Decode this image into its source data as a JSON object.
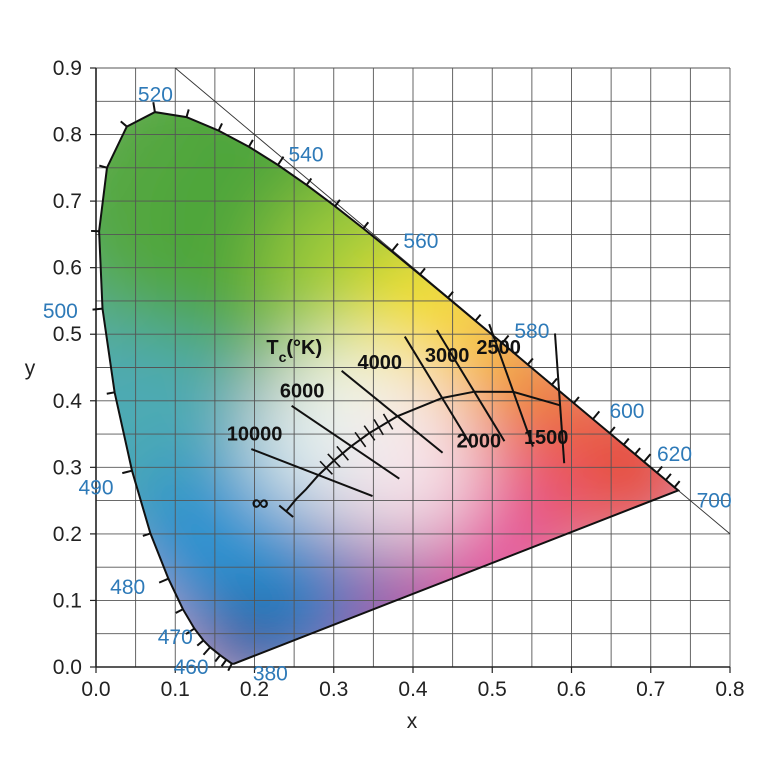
{
  "chart_data": {
    "type": "scatter",
    "xlabel": "x",
    "ylabel": "y",
    "xlim": [
      0.0,
      0.8
    ],
    "ylim": [
      0.0,
      0.9
    ],
    "x_ticks": [
      "0.0",
      "0.1",
      "0.2",
      "0.3",
      "0.4",
      "0.5",
      "0.6",
      "0.7",
      "0.8"
    ],
    "y_ticks": [
      "0.0",
      "0.1",
      "0.2",
      "0.3",
      "0.4",
      "0.5",
      "0.6",
      "0.7",
      "0.8",
      "0.9"
    ],
    "grid": true,
    "spectral_locus": {
      "color": "#2e7ab8",
      "points": [
        {
          "wl": 380,
          "x": 0.1741,
          "y": 0.005
        },
        {
          "wl": 420,
          "x": 0.1714,
          "y": 0.0051
        },
        {
          "wl": 440,
          "x": 0.1644,
          "y": 0.0109
        },
        {
          "wl": 450,
          "x": 0.1566,
          "y": 0.0177
        },
        {
          "wl": 460,
          "x": 0.144,
          "y": 0.0297,
          "label": "460"
        },
        {
          "wl": 465,
          "x": 0.1355,
          "y": 0.0399
        },
        {
          "wl": 470,
          "x": 0.1241,
          "y": 0.0578,
          "label": "470"
        },
        {
          "wl": 475,
          "x": 0.1096,
          "y": 0.0868
        },
        {
          "wl": 480,
          "x": 0.0913,
          "y": 0.1327,
          "label": "480"
        },
        {
          "wl": 485,
          "x": 0.0687,
          "y": 0.2007
        },
        {
          "wl": 490,
          "x": 0.0454,
          "y": 0.295,
          "label": "490"
        },
        {
          "wl": 495,
          "x": 0.0235,
          "y": 0.4127
        },
        {
          "wl": 500,
          "x": 0.0082,
          "y": 0.5384,
          "label": "500"
        },
        {
          "wl": 505,
          "x": 0.0039,
          "y": 0.6548
        },
        {
          "wl": 510,
          "x": 0.0139,
          "y": 0.7502
        },
        {
          "wl": 515,
          "x": 0.0389,
          "y": 0.812
        },
        {
          "wl": 520,
          "x": 0.0743,
          "y": 0.8338,
          "label": "520"
        },
        {
          "wl": 525,
          "x": 0.1142,
          "y": 0.8262
        },
        {
          "wl": 530,
          "x": 0.1547,
          "y": 0.8059
        },
        {
          "wl": 535,
          "x": 0.1929,
          "y": 0.7816
        },
        {
          "wl": 540,
          "x": 0.2296,
          "y": 0.7543,
          "label": "540"
        },
        {
          "wl": 545,
          "x": 0.2658,
          "y": 0.7243
        },
        {
          "wl": 550,
          "x": 0.3016,
          "y": 0.6923
        },
        {
          "wl": 555,
          "x": 0.3373,
          "y": 0.6589
        },
        {
          "wl": 560,
          "x": 0.3731,
          "y": 0.6245,
          "label": "560"
        },
        {
          "wl": 565,
          "x": 0.4087,
          "y": 0.5896
        },
        {
          "wl": 570,
          "x": 0.4441,
          "y": 0.5547
        },
        {
          "wl": 575,
          "x": 0.4788,
          "y": 0.5202
        },
        {
          "wl": 580,
          "x": 0.5125,
          "y": 0.4866,
          "label": "580"
        },
        {
          "wl": 585,
          "x": 0.5448,
          "y": 0.4544
        },
        {
          "wl": 590,
          "x": 0.5752,
          "y": 0.4242
        },
        {
          "wl": 595,
          "x": 0.6029,
          "y": 0.3965
        },
        {
          "wl": 600,
          "x": 0.627,
          "y": 0.3725,
          "label": "600"
        },
        {
          "wl": 605,
          "x": 0.6482,
          "y": 0.3514
        },
        {
          "wl": 610,
          "x": 0.6658,
          "y": 0.334
        },
        {
          "wl": 615,
          "x": 0.6801,
          "y": 0.3197
        },
        {
          "wl": 620,
          "x": 0.6915,
          "y": 0.3083,
          "label": "620"
        },
        {
          "wl": 630,
          "x": 0.7079,
          "y": 0.292
        },
        {
          "wl": 640,
          "x": 0.719,
          "y": 0.2809
        },
        {
          "wl": 660,
          "x": 0.73,
          "y": 0.27
        },
        {
          "wl": 700,
          "x": 0.7347,
          "y": 0.2653,
          "label": "700"
        }
      ],
      "purple_line": {
        "from": 700,
        "to": 380,
        "label_end": "380"
      }
    },
    "reference_line": {
      "from": [
        0.1,
        0.9
      ],
      "to": [
        0.8,
        0.2
      ]
    },
    "planckian_locus": {
      "label": "T",
      "label_sub": "c",
      "label_unit": "(°K)",
      "infinity_label": "∞",
      "infinity_point": {
        "x": 0.24,
        "y": 0.234
      },
      "points": [
        {
          "x": 0.24,
          "y": 0.234
        },
        {
          "x": 0.2526,
          "y": 0.2522
        },
        {
          "x": 0.265,
          "y": 0.267
        },
        {
          "x": 0.2807,
          "y": 0.2883
        },
        {
          "x": 0.3003,
          "y": 0.3103
        },
        {
          "x": 0.3221,
          "y": 0.3318
        },
        {
          "x": 0.3451,
          "y": 0.3516
        },
        {
          "x": 0.3805,
          "y": 0.3768
        },
        {
          "x": 0.4369,
          "y": 0.4041
        },
        {
          "x": 0.4773,
          "y": 0.4137
        },
        {
          "x": 0.5267,
          "y": 0.4133
        },
        {
          "x": 0.5856,
          "y": 0.3932
        }
      ],
      "isotherms": [
        {
          "label": "10000",
          "x": 0.2807,
          "y": 0.2883
        },
        {
          "label": "6000",
          "x": 0.3221,
          "y": 0.3318
        },
        {
          "label": "4000",
          "x": 0.3805,
          "y": 0.3768
        },
        {
          "label": "3000",
          "x": 0.4369,
          "y": 0.4041
        },
        {
          "label": "2500",
          "x": 0.4773,
          "y": 0.4137
        },
        {
          "label": "2000",
          "x": 0.5267,
          "y": 0.4133
        },
        {
          "label": "1500",
          "x": 0.5856,
          "y": 0.3932
        }
      ],
      "minor_ticks": [
        {
          "x": 0.2905,
          "y": 0.2993
        },
        {
          "x": 0.3003,
          "y": 0.3103
        },
        {
          "x": 0.3112,
          "y": 0.3211
        },
        {
          "x": 0.3336,
          "y": 0.3417
        },
        {
          "x": 0.3451,
          "y": 0.3516
        },
        {
          "x": 0.3567,
          "y": 0.3604
        },
        {
          "x": 0.3686,
          "y": 0.3686
        }
      ]
    }
  }
}
